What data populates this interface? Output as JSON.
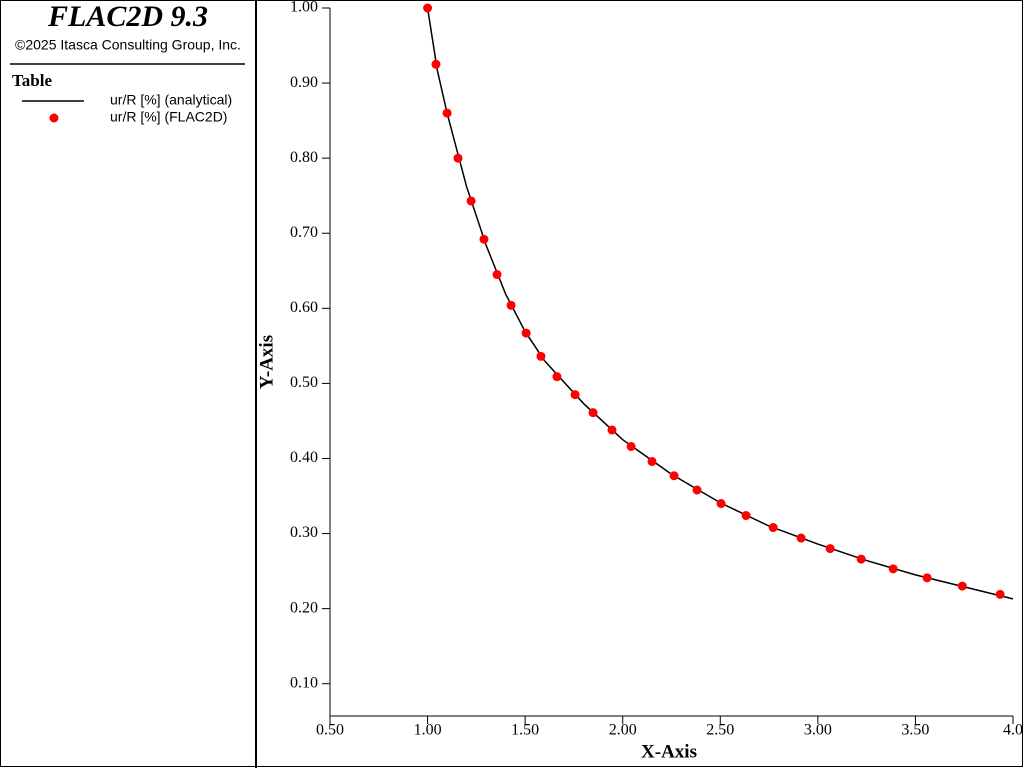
{
  "header": {
    "title": "FLAC2D 9.3",
    "copyright": "©2025 Itasca Consulting Group, Inc."
  },
  "chart_data": {
    "type": "line",
    "legend_title": "Table",
    "xlabel": "X-Axis",
    "ylabel": "Y-Axis",
    "xlim": [
      0.5,
      4.0
    ],
    "ylim": [
      0.057,
      1.0
    ],
    "xticks": [
      {
        "value": 0.5,
        "label": "0.50"
      },
      {
        "value": 1.0,
        "label": "1.00"
      },
      {
        "value": 1.5,
        "label": "1.50"
      },
      {
        "value": 2.0,
        "label": "2.00"
      },
      {
        "value": 2.5,
        "label": "2.50"
      },
      {
        "value": 3.0,
        "label": "3.00"
      },
      {
        "value": 3.5,
        "label": "3.50"
      },
      {
        "value": 4.0,
        "label": "4.0"
      }
    ],
    "yticks": [
      {
        "value": 0.1,
        "label": "0.10"
      },
      {
        "value": 0.2,
        "label": "0.20"
      },
      {
        "value": 0.3,
        "label": "0.30"
      },
      {
        "value": 0.4,
        "label": "0.40"
      },
      {
        "value": 0.5,
        "label": "0.50"
      },
      {
        "value": 0.6,
        "label": "0.60"
      },
      {
        "value": 0.7,
        "label": "0.70"
      },
      {
        "value": 0.8,
        "label": "0.80"
      },
      {
        "value": 0.9,
        "label": "0.90"
      },
      {
        "value": 1.0,
        "label": "1.00"
      }
    ],
    "series": [
      {
        "name": "ur/R [%] (analytical)",
        "color": "#000000",
        "style": "line",
        "x": [
          1.0,
          1.05,
          1.1,
          1.2,
          1.3,
          1.4,
          1.5,
          1.6,
          1.8,
          2.0,
          2.25,
          2.5,
          2.75,
          3.0,
          3.25,
          3.5,
          3.75,
          4.0
        ],
        "values": [
          1.0,
          0.917,
          0.86,
          0.762,
          0.684,
          0.619,
          0.569,
          0.53,
          0.473,
          0.425,
          0.379,
          0.341,
          0.31,
          0.286,
          0.264,
          0.245,
          0.229,
          0.213
        ]
      },
      {
        "name": "ur/R [%] (FLAC2D)",
        "color": "#ff0000",
        "style": "markers",
        "x": [
          1.0,
          1.043,
          1.1,
          1.156,
          1.223,
          1.289,
          1.356,
          1.428,
          1.505,
          1.581,
          1.663,
          1.756,
          1.848,
          1.945,
          2.043,
          2.15,
          2.263,
          2.381,
          2.504,
          2.632,
          2.771,
          2.914,
          3.063,
          3.222,
          3.386,
          3.56,
          3.74,
          3.934
        ],
        "values": [
          1.0,
          0.925,
          0.86,
          0.8,
          0.743,
          0.692,
          0.645,
          0.604,
          0.567,
          0.536,
          0.509,
          0.485,
          0.461,
          0.438,
          0.416,
          0.396,
          0.377,
          0.358,
          0.34,
          0.324,
          0.308,
          0.294,
          0.28,
          0.266,
          0.253,
          0.241,
          0.23,
          0.219
        ]
      }
    ]
  }
}
